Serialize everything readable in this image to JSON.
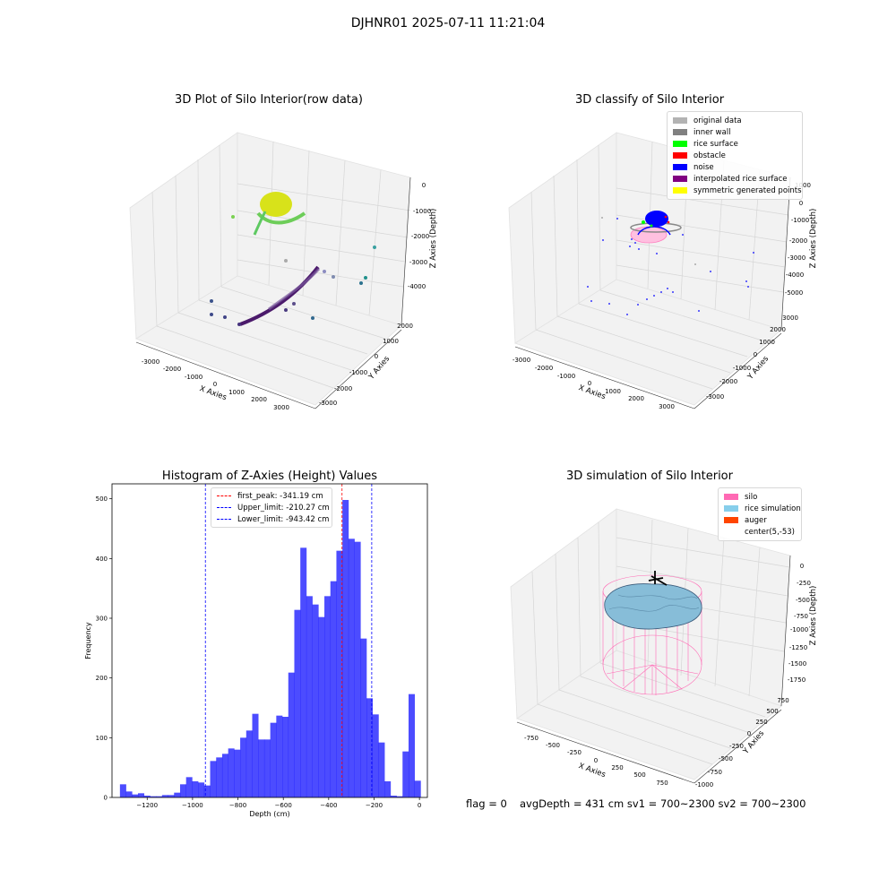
{
  "suptitle": "DJHNR01 2025-07-11 11:21:04",
  "panel1": {
    "title": "3D Plot of Silo Interior(row data)",
    "xlabel": "X Axies",
    "ylabel": "Y Axies",
    "zlabel": "Z Axies (Depth)",
    "xticks": [
      "-3000",
      "-2000",
      "-1000",
      "0",
      "1000",
      "2000",
      "3000"
    ],
    "yticks": [
      "-3000",
      "-2000",
      "-1000",
      "0",
      "1000",
      "2000"
    ],
    "zticks": [
      "0",
      "-1000",
      "-2000",
      "-3000",
      "-4000"
    ]
  },
  "panel2": {
    "title": "3D classify of Silo Interior",
    "xlabel": "X Axies",
    "ylabel": "Y Axies",
    "zlabel": "Z Axies (Depth)",
    "xticks": [
      "-3000",
      "-2000",
      "-1000",
      "0",
      "1000",
      "2000",
      "3000"
    ],
    "yticks": [
      "-3000",
      "-2000",
      "-1000",
      "0",
      "1000",
      "2000",
      "3000"
    ],
    "zticks": [
      "1000",
      "0",
      "-1000",
      "-2000",
      "-3000",
      "-4000",
      "-5000"
    ],
    "legend": [
      {
        "label": "original data",
        "color": "#b3b3b3"
      },
      {
        "label": "inner wall",
        "color": "#808080"
      },
      {
        "label": "rice surface",
        "color": "#00ff00"
      },
      {
        "label": "obstacle",
        "color": "#ff0000"
      },
      {
        "label": "noise",
        "color": "#0000ff"
      },
      {
        "label": "interpolated rice surface",
        "color": "#800080"
      },
      {
        "label": "symmetric generated points",
        "color": "#ffff00"
      }
    ]
  },
  "panel4": {
    "title": "3D simulation of Silo Interior",
    "xlabel": "X Axies",
    "ylabel": "Y Axies",
    "zlabel": "Z Axies (Depth)",
    "xticks": [
      "-750",
      "-500",
      "-250",
      "0",
      "250",
      "500",
      "750"
    ],
    "yticks": [
      "-1000",
      "-750",
      "-500",
      "-250",
      "0",
      "250",
      "500",
      "750"
    ],
    "zticks": [
      "0",
      "-250",
      "-500",
      "-750",
      "-1000",
      "-1250",
      "-1500",
      "-1750"
    ],
    "legend": [
      {
        "label": "silo",
        "color": "#ff69b4"
      },
      {
        "label": "rice simulation",
        "color": "#87ceeb"
      },
      {
        "label": "auger",
        "color": "#ff4500"
      },
      {
        "label": "center(5,-53)",
        "color": "#ffffff"
      }
    ]
  },
  "bottom_text": {
    "flag": "flag = 0",
    "summary": "avgDepth = 431 cm  sv1 = 700~2300  sv2 = 700~2300"
  },
  "chart_data": {
    "type": "bar",
    "title": "Histogram of Z-Axies (Height) Values",
    "xlabel": "Depth (cm)",
    "ylabel": "Frequency",
    "xlim": [
      -1355,
      35
    ],
    "ylim": [
      0,
      525
    ],
    "xticks": [
      -1200,
      -1000,
      -800,
      -600,
      -400,
      -200,
      0
    ],
    "yticks": [
      0,
      100,
      200,
      300,
      400,
      500
    ],
    "bar_color": "#0000ff",
    "bin_start": -1320,
    "bin_width": 26.5,
    "values": [
      22,
      10,
      5,
      7,
      3,
      2,
      2,
      4,
      4,
      8,
      22,
      34,
      27,
      25,
      20,
      61,
      67,
      73,
      82,
      80,
      100,
      112,
      140,
      97,
      97,
      125,
      137,
      135,
      209,
      314,
      418,
      337,
      323,
      302,
      337,
      362,
      413,
      498,
      433,
      428,
      266,
      166,
      139,
      92,
      27,
      3,
      2,
      77,
      173,
      28
    ],
    "vlines": [
      {
        "label": "first_peak: -341.19 cm",
        "x": -341.19,
        "color": "#ff0000"
      },
      {
        "label": "Upper_limit: -210.27 cm",
        "x": -210.27,
        "color": "#0000ff"
      },
      {
        "label": "Lower_limit: -943.42 cm",
        "x": -943.42,
        "color": "#0000ff"
      }
    ]
  }
}
